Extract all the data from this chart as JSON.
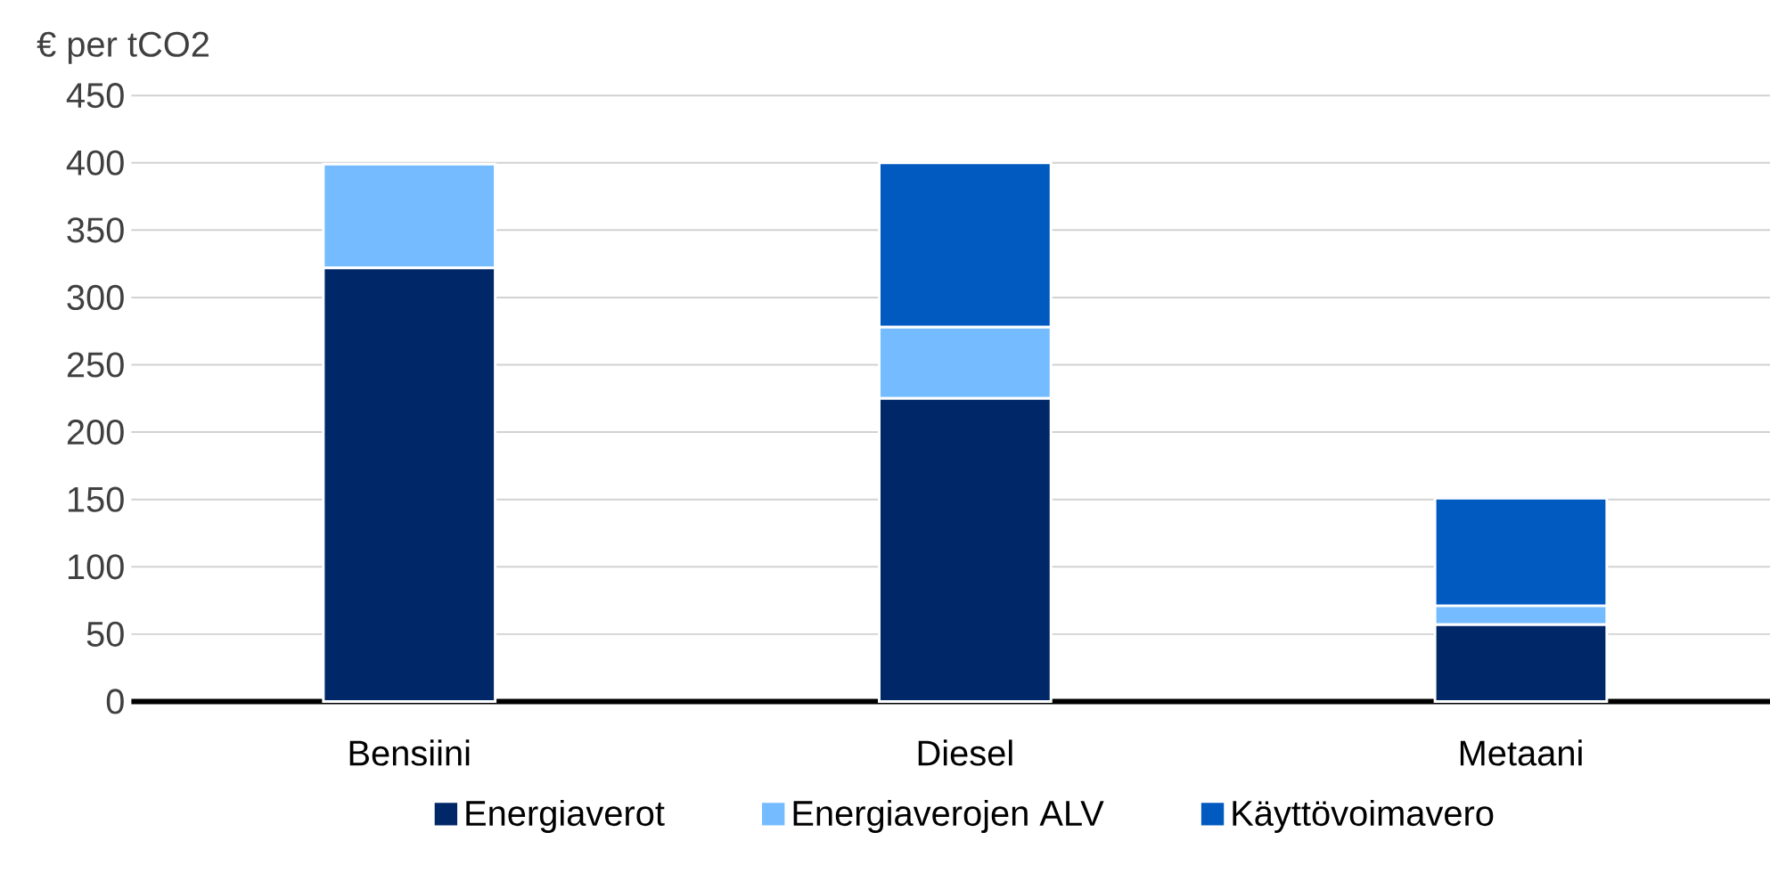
{
  "chart_data": {
    "type": "bar",
    "stacked": true,
    "ylabel": "€  per tCO2",
    "categories": [
      "Bensiini",
      "Diesel",
      "Metaani"
    ],
    "series": [
      {
        "name": "Energiaverot",
        "color": "#002868",
        "values": [
          322,
          225,
          57
        ]
      },
      {
        "name": "Energiaverojen ALV",
        "color": "#74bcff",
        "values": [
          77,
          53,
          14
        ]
      },
      {
        "name": "Käyttövoimavero",
        "color": "#005abf",
        "values": [
          0,
          122,
          80
        ]
      }
    ],
    "ylim": [
      0,
      450
    ],
    "yticks": [
      0,
      50,
      100,
      150,
      200,
      250,
      300,
      350,
      400,
      450
    ],
    "grid": "y",
    "legend": "bottom"
  }
}
